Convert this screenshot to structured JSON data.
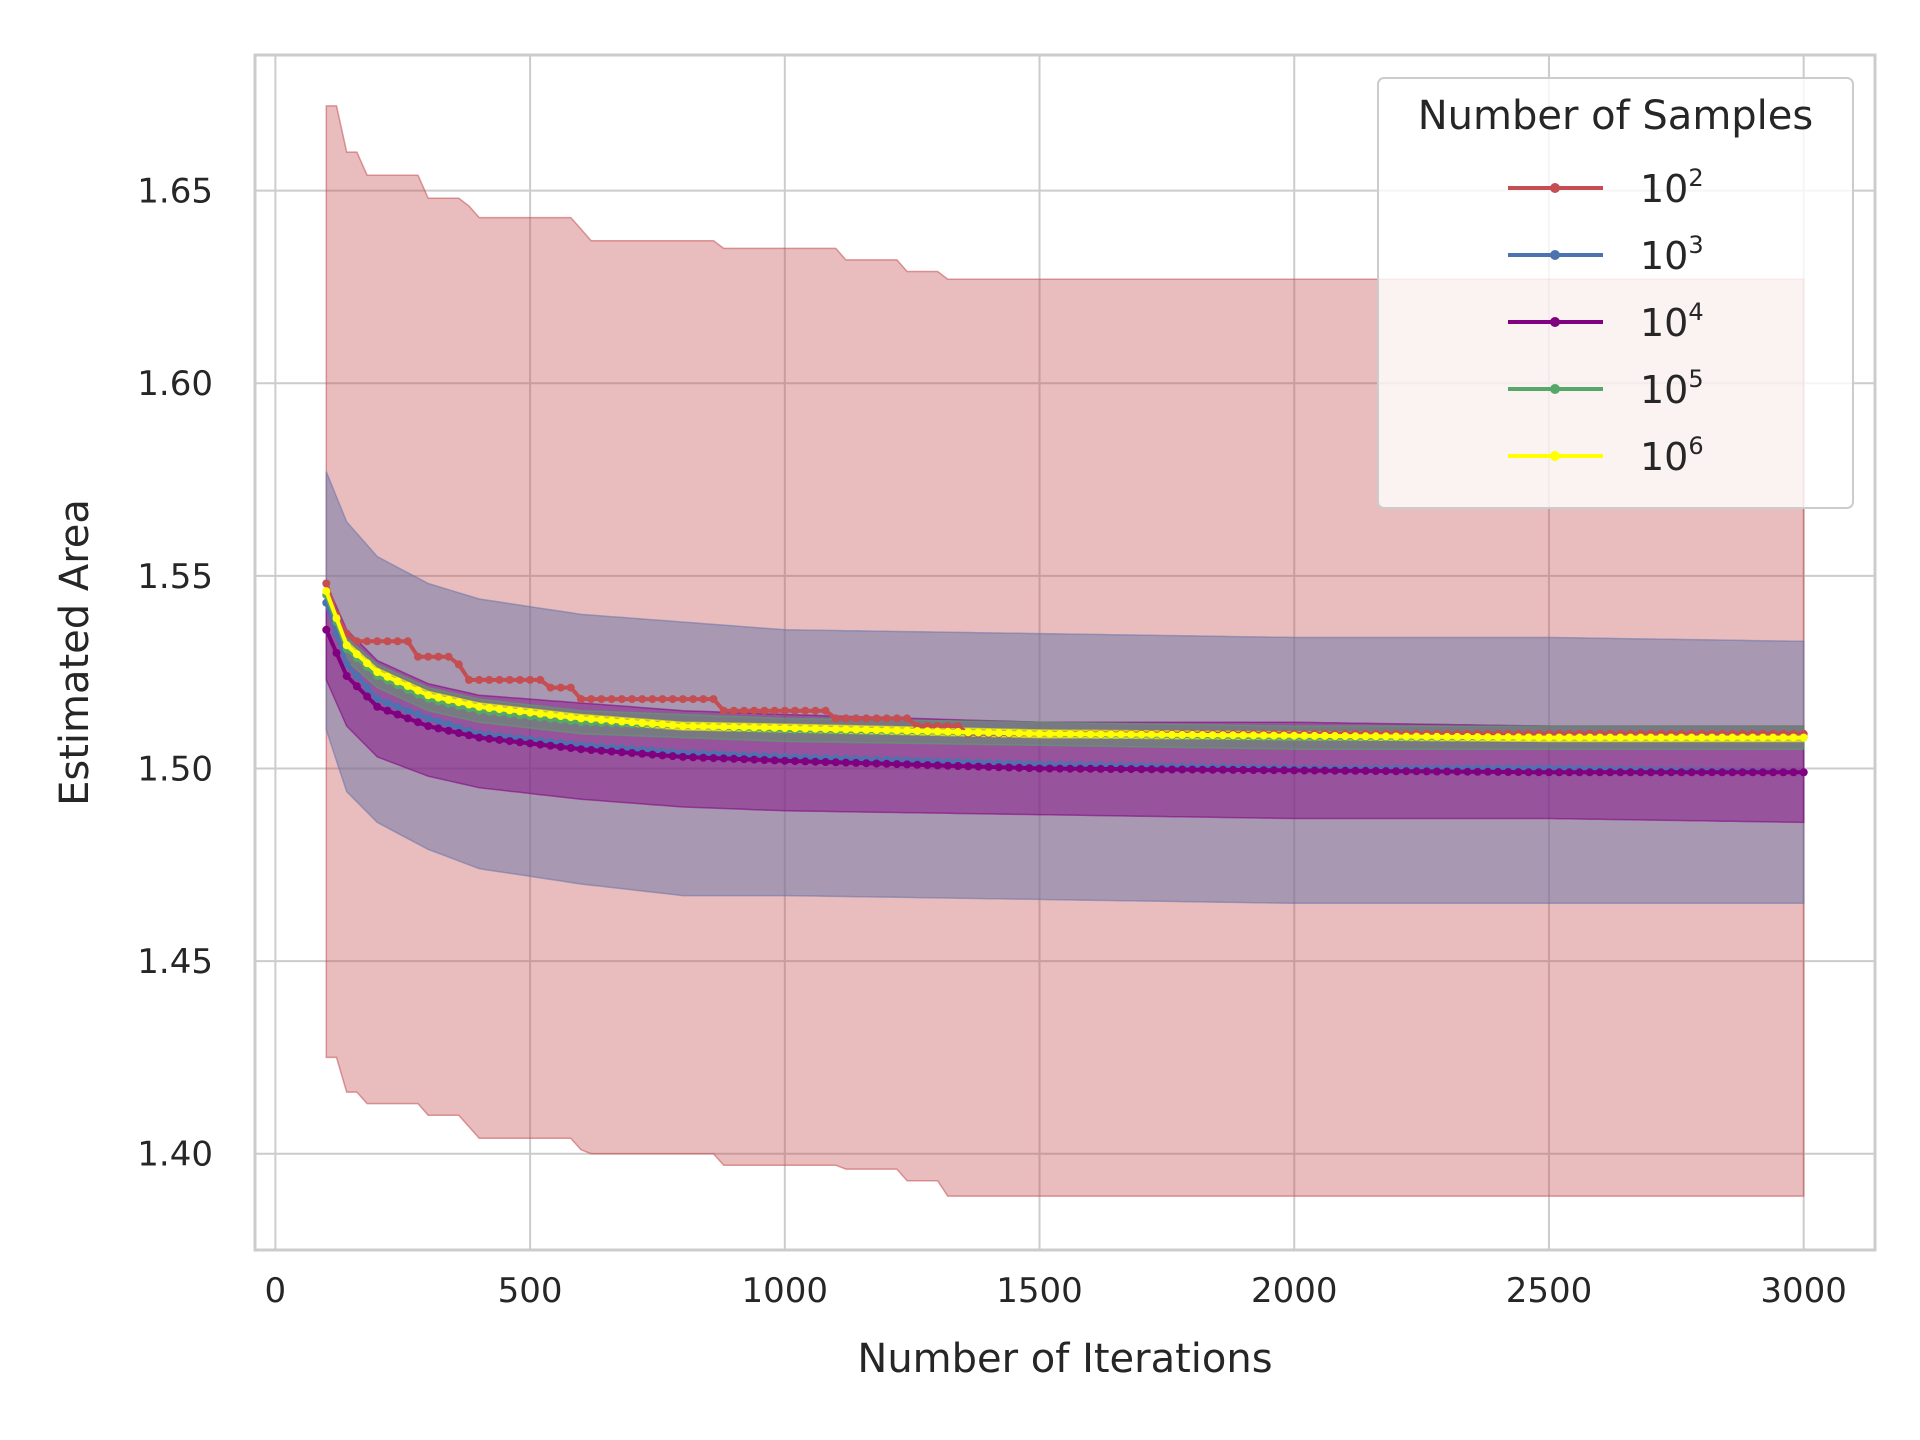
{
  "chart_data": {
    "type": "line",
    "title": "",
    "xlabel": "Number of Iterations",
    "ylabel": "Estimated Area",
    "xlim": [
      -40,
      3140
    ],
    "ylim": [
      1.375,
      1.6852
    ],
    "xticks": [
      0,
      500,
      1000,
      1500,
      2000,
      2500,
      3000
    ],
    "yticks": [
      1.4,
      1.45,
      1.5,
      1.55,
      1.6,
      1.65
    ],
    "xtick_labels": [
      "0",
      "500",
      "1000",
      "1500",
      "2000",
      "2500",
      "3000"
    ],
    "ytick_labels": [
      "1.40",
      "1.45",
      "1.50",
      "1.55",
      "1.60",
      "1.65"
    ],
    "grid": true,
    "legend": {
      "title": "Number of Samples",
      "position": "top-right",
      "entries": [
        {
          "base": "10",
          "exp": "2"
        },
        {
          "base": "10",
          "exp": "3"
        },
        {
          "base": "10",
          "exp": "4"
        },
        {
          "base": "10",
          "exp": "5"
        },
        {
          "base": "10",
          "exp": "6"
        }
      ]
    },
    "x_start": 100,
    "x_end": 3000,
    "x_step": 20,
    "series": [
      {
        "name": "10^2",
        "color": "#c44e52",
        "mean_points": [
          [
            100,
            1.548
          ],
          [
            120,
            1.54
          ],
          [
            140,
            1.535
          ],
          [
            160,
            1.533
          ],
          [
            200,
            1.533
          ],
          [
            250,
            1.533
          ],
          [
            280,
            1.529
          ],
          [
            320,
            1.529
          ],
          [
            360,
            1.527
          ],
          [
            380,
            1.523
          ],
          [
            500,
            1.523
          ],
          [
            540,
            1.521
          ],
          [
            600,
            1.518
          ],
          [
            850,
            1.518
          ],
          [
            870,
            1.515
          ],
          [
            1060,
            1.515
          ],
          [
            1090,
            1.513
          ],
          [
            1220,
            1.513
          ],
          [
            1250,
            1.511
          ],
          [
            1320,
            1.511
          ],
          [
            1350,
            1.509
          ],
          [
            3000,
            1.509
          ]
        ],
        "upper_points": [
          [
            100,
            1.672
          ],
          [
            125,
            1.66
          ],
          [
            170,
            1.654
          ],
          [
            260,
            1.654
          ],
          [
            300,
            1.648
          ],
          [
            370,
            1.646
          ],
          [
            400,
            1.643
          ],
          [
            530,
            1.643
          ],
          [
            590,
            1.64
          ],
          [
            620,
            1.637
          ],
          [
            850,
            1.637
          ],
          [
            880,
            1.635
          ],
          [
            1090,
            1.635
          ],
          [
            1110,
            1.632
          ],
          [
            1220,
            1.632
          ],
          [
            1240,
            1.629
          ],
          [
            1290,
            1.629
          ],
          [
            1320,
            1.627
          ],
          [
            3000,
            1.627
          ]
        ],
        "lower_points": [
          [
            100,
            1.425
          ],
          [
            125,
            1.416
          ],
          [
            170,
            1.413
          ],
          [
            260,
            1.413
          ],
          [
            300,
            1.41
          ],
          [
            370,
            1.407
          ],
          [
            400,
            1.404
          ],
          [
            530,
            1.404
          ],
          [
            590,
            1.401
          ],
          [
            620,
            1.4
          ],
          [
            850,
            1.4
          ],
          [
            880,
            1.397
          ],
          [
            1090,
            1.397
          ],
          [
            1110,
            1.396
          ],
          [
            1220,
            1.396
          ],
          [
            1240,
            1.393
          ],
          [
            1290,
            1.393
          ],
          [
            1320,
            1.389
          ],
          [
            3000,
            1.389
          ]
        ],
        "band_opacity": 0.38
      },
      {
        "name": "10^3",
        "color": "#4c72b0",
        "band_color": "#6a74a8",
        "mean_points": [
          [
            100,
            1.543
          ],
          [
            140,
            1.527
          ],
          [
            200,
            1.518
          ],
          [
            300,
            1.513
          ],
          [
            400,
            1.509
          ],
          [
            600,
            1.506
          ],
          [
            800,
            1.504
          ],
          [
            1000,
            1.503
          ],
          [
            1500,
            1.501
          ],
          [
            2000,
            1.5
          ],
          [
            2500,
            1.5
          ],
          [
            3000,
            1.499
          ]
        ],
        "upper_points": [
          [
            100,
            1.577
          ],
          [
            140,
            1.564
          ],
          [
            200,
            1.555
          ],
          [
            300,
            1.548
          ],
          [
            400,
            1.544
          ],
          [
            600,
            1.54
          ],
          [
            800,
            1.538
          ],
          [
            1000,
            1.536
          ],
          [
            1500,
            1.535
          ],
          [
            2000,
            1.534
          ],
          [
            2500,
            1.534
          ],
          [
            3000,
            1.533
          ]
        ],
        "lower_points": [
          [
            100,
            1.51
          ],
          [
            140,
            1.494
          ],
          [
            200,
            1.486
          ],
          [
            300,
            1.479
          ],
          [
            400,
            1.474
          ],
          [
            600,
            1.47
          ],
          [
            800,
            1.467
          ],
          [
            1000,
            1.467
          ],
          [
            1500,
            1.466
          ],
          [
            2000,
            1.465
          ],
          [
            2500,
            1.465
          ],
          [
            3000,
            1.465
          ]
        ],
        "band_opacity": 0.5
      },
      {
        "name": "10^4",
        "color": "#800080",
        "mean_points": [
          [
            100,
            1.536
          ],
          [
            140,
            1.524
          ],
          [
            200,
            1.516
          ],
          [
            300,
            1.511
          ],
          [
            400,
            1.508
          ],
          [
            600,
            1.505
          ],
          [
            800,
            1.503
          ],
          [
            1000,
            1.502
          ],
          [
            1500,
            1.5
          ],
          [
            2000,
            1.4995
          ],
          [
            2500,
            1.499
          ],
          [
            3000,
            1.499
          ]
        ],
        "upper_points": [
          [
            100,
            1.548
          ],
          [
            140,
            1.536
          ],
          [
            200,
            1.528
          ],
          [
            300,
            1.522
          ],
          [
            400,
            1.519
          ],
          [
            600,
            1.517
          ],
          [
            800,
            1.515
          ],
          [
            1000,
            1.514
          ],
          [
            1500,
            1.512
          ],
          [
            2000,
            1.512
          ],
          [
            2500,
            1.511
          ],
          [
            3000,
            1.511
          ]
        ],
        "lower_points": [
          [
            100,
            1.523
          ],
          [
            140,
            1.511
          ],
          [
            200,
            1.503
          ],
          [
            300,
            1.498
          ],
          [
            400,
            1.495
          ],
          [
            600,
            1.492
          ],
          [
            800,
            1.49
          ],
          [
            1000,
            1.489
          ],
          [
            1500,
            1.488
          ],
          [
            2000,
            1.487
          ],
          [
            2500,
            1.487
          ],
          [
            3000,
            1.486
          ]
        ],
        "band_opacity": 0.45
      },
      {
        "name": "10^5",
        "color": "#55a868",
        "mean_points": [
          [
            100,
            1.545
          ],
          [
            140,
            1.531
          ],
          [
            200,
            1.524
          ],
          [
            300,
            1.518
          ],
          [
            400,
            1.515
          ],
          [
            600,
            1.512
          ],
          [
            800,
            1.511
          ],
          [
            1000,
            1.51
          ],
          [
            1500,
            1.509
          ],
          [
            2000,
            1.508
          ],
          [
            2500,
            1.508
          ],
          [
            3000,
            1.508
          ]
        ],
        "upper_points": [
          [
            100,
            1.548
          ],
          [
            140,
            1.534
          ],
          [
            200,
            1.527
          ],
          [
            300,
            1.521
          ],
          [
            400,
            1.518
          ],
          [
            600,
            1.515
          ],
          [
            800,
            1.514
          ],
          [
            1000,
            1.513
          ],
          [
            1500,
            1.512
          ],
          [
            2000,
            1.511
          ],
          [
            2500,
            1.511
          ],
          [
            3000,
            1.511
          ]
        ],
        "lower_points": [
          [
            100,
            1.542
          ],
          [
            140,
            1.528
          ],
          [
            200,
            1.521
          ],
          [
            300,
            1.515
          ],
          [
            400,
            1.512
          ],
          [
            600,
            1.509
          ],
          [
            800,
            1.508
          ],
          [
            1000,
            1.507
          ],
          [
            1500,
            1.506
          ],
          [
            2000,
            1.505
          ],
          [
            2500,
            1.505
          ],
          [
            3000,
            1.505
          ]
        ],
        "band_opacity": 0.45
      },
      {
        "name": "10^6",
        "color": "#ffff00",
        "mean_points": [
          [
            100,
            1.546
          ],
          [
            140,
            1.532
          ],
          [
            200,
            1.525
          ],
          [
            300,
            1.519
          ],
          [
            400,
            1.516
          ],
          [
            600,
            1.513
          ],
          [
            800,
            1.511
          ],
          [
            1000,
            1.5105
          ],
          [
            1500,
            1.509
          ],
          [
            2000,
            1.5085
          ],
          [
            2500,
            1.508
          ],
          [
            3000,
            1.508
          ]
        ],
        "upper_points": [
          [
            100,
            1.547
          ],
          [
            140,
            1.533
          ],
          [
            200,
            1.526
          ],
          [
            300,
            1.52
          ],
          [
            400,
            1.517
          ],
          [
            600,
            1.514
          ],
          [
            800,
            1.512
          ],
          [
            1000,
            1.5115
          ],
          [
            1500,
            1.51
          ],
          [
            2000,
            1.5095
          ],
          [
            2500,
            1.509
          ],
          [
            3000,
            1.509
          ]
        ],
        "lower_points": [
          [
            100,
            1.545
          ],
          [
            140,
            1.531
          ],
          [
            200,
            1.524
          ],
          [
            300,
            1.518
          ],
          [
            400,
            1.515
          ],
          [
            600,
            1.512
          ],
          [
            800,
            1.51
          ],
          [
            1000,
            1.5095
          ],
          [
            1500,
            1.508
          ],
          [
            2000,
            1.5075
          ],
          [
            2500,
            1.507
          ],
          [
            3000,
            1.507
          ]
        ],
        "band_opacity": 0.5
      }
    ]
  }
}
